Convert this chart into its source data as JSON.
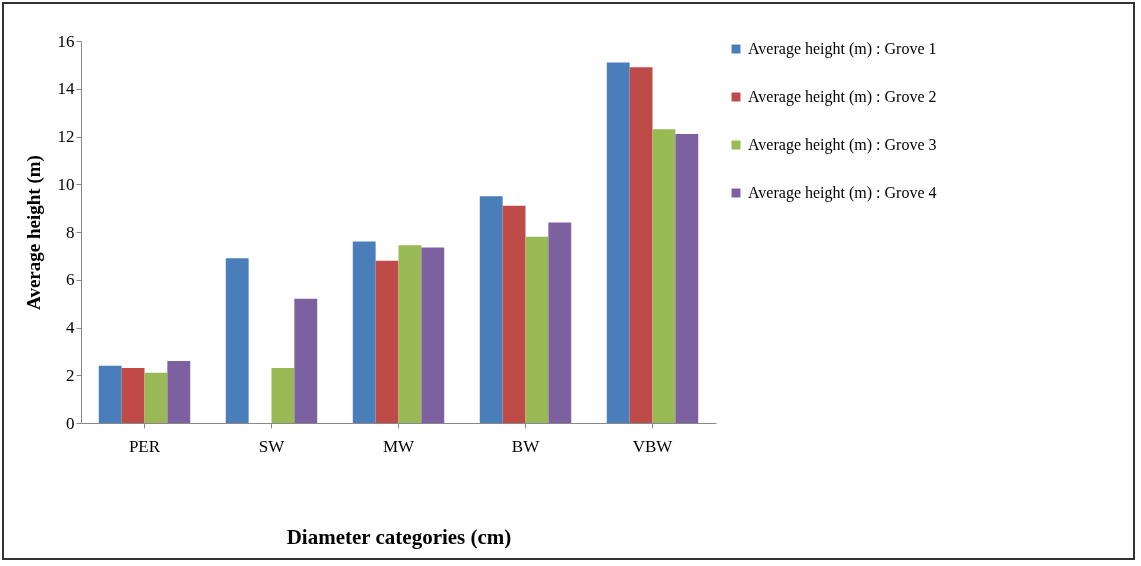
{
  "chart_data": {
    "type": "bar",
    "xlabel": "Diameter categories (cm)",
    "ylabel": "Average height (m)",
    "categories": [
      "PER",
      "SW",
      "MW",
      "BW",
      "VBW"
    ],
    "series": [
      {
        "name": "Average height (m) : Grove 1",
        "color": "#4a7ebb",
        "values": [
          2.4,
          6.9,
          7.6,
          9.5,
          15.1
        ]
      },
      {
        "name": "Average height (m) : Grove 2",
        "color": "#be4b48",
        "values": [
          2.3,
          null,
          6.8,
          9.1,
          14.9
        ]
      },
      {
        "name": "Average height (m) : Grove 3",
        "color": "#98b954",
        "values": [
          2.1,
          2.3,
          7.45,
          7.8,
          12.3
        ]
      },
      {
        "name": "Average height (m) : Grove 4",
        "color": "#7d60a0",
        "values": [
          2.6,
          5.2,
          7.35,
          8.4,
          12.1
        ]
      }
    ],
    "ylim": [
      0,
      16
    ],
    "yticks": [
      0,
      2,
      4,
      6,
      8,
      10,
      12,
      14,
      16
    ],
    "grid": false,
    "legend": "right"
  }
}
